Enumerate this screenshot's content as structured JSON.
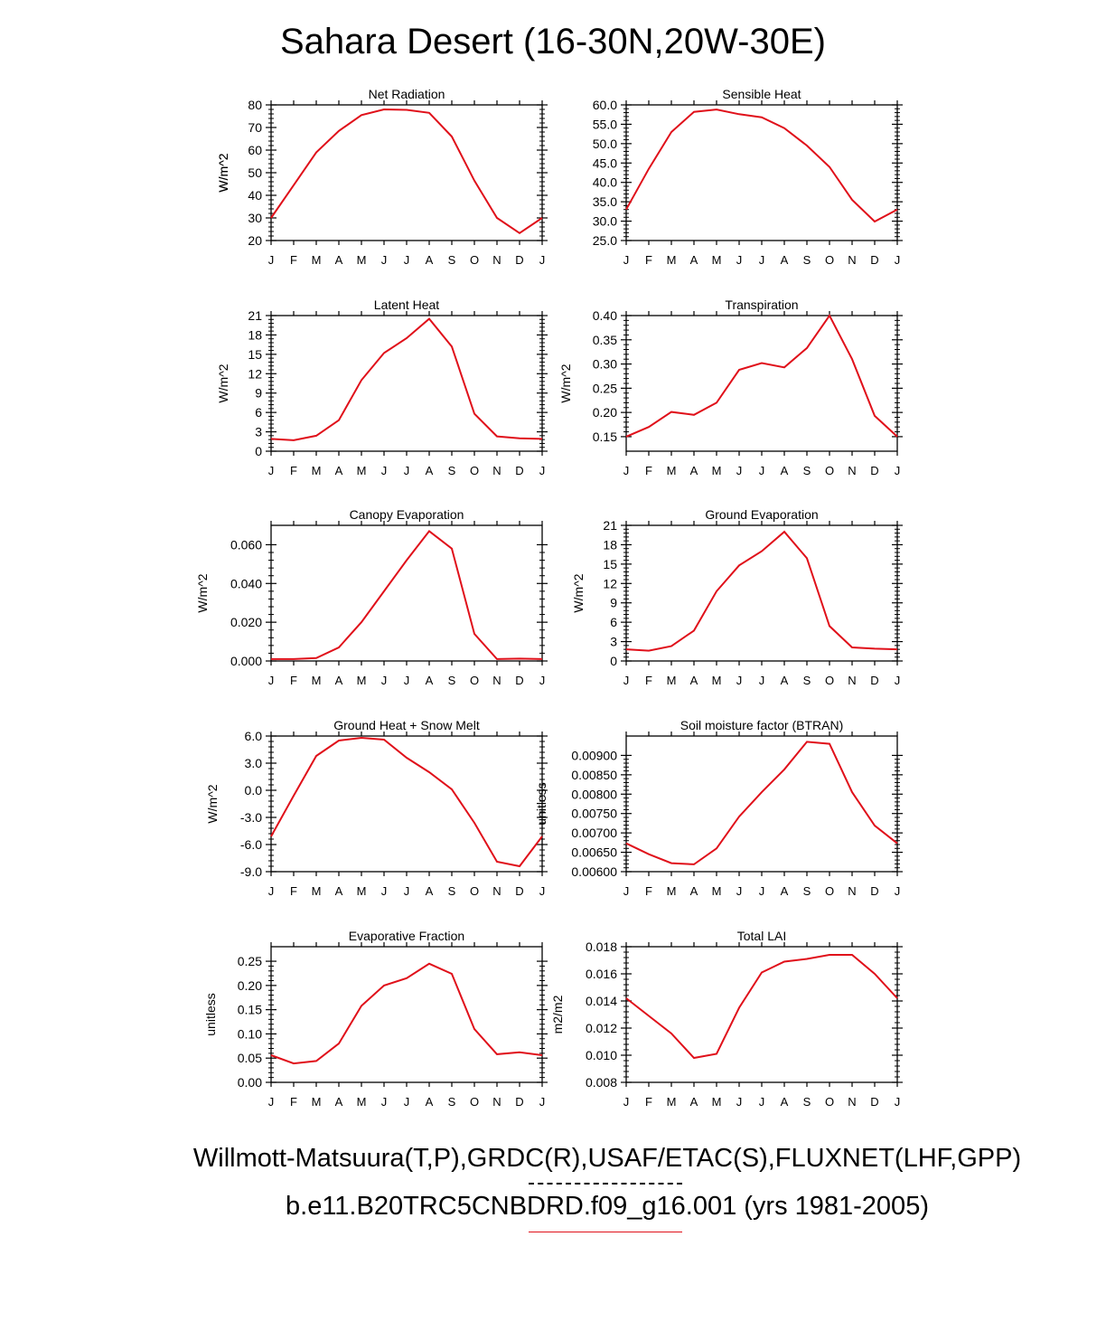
{
  "title": "Sahara Desert (16-30N,20W-30E)",
  "footer": {
    "line1": "Willmott-Matsuura(T,P),GRDC(R),USAF/ETAC(S),FLUXNET(LHF,GPP)",
    "line2": "b.e11.B20TRC5CNBDRD.f09_g16.001 (yrs 1981-2005)"
  },
  "colors": {
    "series": "#e0101a",
    "axes": "#000000"
  },
  "chart_data": [
    {
      "type": "line",
      "title": "Net Radiation",
      "ylabel": "W/m^2",
      "categories": [
        "J",
        "F",
        "M",
        "A",
        "M",
        "J",
        "J",
        "A",
        "S",
        "O",
        "N",
        "D",
        "J"
      ],
      "ylim": [
        20,
        80
      ],
      "yticks": [
        20,
        30,
        40,
        50,
        60,
        70,
        80
      ],
      "ytick_labels": [
        "20",
        "30",
        "40",
        "50",
        "60",
        "70",
        "80"
      ],
      "values": [
        30,
        44.5,
        59,
        68.5,
        75.5,
        78,
        77.8,
        76.5,
        66,
        46.5,
        30,
        23.3,
        30
      ]
    },
    {
      "type": "line",
      "title": "Sensible Heat",
      "ylabel": "W/m^2",
      "categories": [
        "J",
        "F",
        "M",
        "A",
        "M",
        "J",
        "J",
        "A",
        "S",
        "O",
        "N",
        "D",
        "J"
      ],
      "ylim": [
        25,
        60
      ],
      "yticks": [
        25,
        30,
        35,
        40,
        45,
        50,
        55,
        60
      ],
      "ytick_labels": [
        "25.0",
        "30.0",
        "35.0",
        "40.0",
        "45.0",
        "50.0",
        "55.0",
        "60.0"
      ],
      "values": [
        33,
        43.5,
        53,
        58.2,
        58.8,
        57.6,
        56.8,
        54,
        49.5,
        44,
        35.5,
        29.9,
        33
      ]
    },
    {
      "type": "line",
      "title": "Latent Heat",
      "ylabel": "W/m^2",
      "categories": [
        "J",
        "F",
        "M",
        "A",
        "M",
        "J",
        "J",
        "A",
        "S",
        "O",
        "N",
        "D",
        "J"
      ],
      "ylim": [
        0,
        21
      ],
      "yticks": [
        0,
        3,
        6,
        9,
        12,
        15,
        18,
        21
      ],
      "ytick_labels": [
        "0",
        "3",
        "6",
        "9",
        "12",
        "15",
        "18",
        "21"
      ],
      "values": [
        1.9,
        1.7,
        2.4,
        4.8,
        11,
        15.2,
        17.5,
        20.5,
        16.2,
        5.8,
        2.3,
        2,
        1.9
      ]
    },
    {
      "type": "line",
      "title": "Transpiration",
      "ylabel": "W/m^2",
      "categories": [
        "J",
        "F",
        "M",
        "A",
        "M",
        "J",
        "J",
        "A",
        "S",
        "O",
        "N",
        "D",
        "J"
      ],
      "ylim": [
        0.12,
        0.4
      ],
      "yticks": [
        0.15,
        0.2,
        0.25,
        0.3,
        0.35,
        0.4
      ],
      "ytick_labels": [
        "0.15",
        "0.20",
        "0.25",
        "0.30",
        "0.35",
        "0.40"
      ],
      "values": [
        0.15,
        0.17,
        0.201,
        0.195,
        0.22,
        0.288,
        0.302,
        0.293,
        0.333,
        0.4,
        0.31,
        0.193,
        0.15
      ]
    },
    {
      "type": "line",
      "title": "Canopy Evaporation",
      "ylabel": "W/m^2",
      "categories": [
        "J",
        "F",
        "M",
        "A",
        "M",
        "J",
        "J",
        "A",
        "S",
        "O",
        "N",
        "D",
        "J"
      ],
      "ylim": [
        0,
        0.07
      ],
      "yticks": [
        0,
        0.02,
        0.04,
        0.06
      ],
      "ytick_labels": [
        "0.000",
        "0.020",
        "0.040",
        "0.060"
      ],
      "values": [
        0.001,
        0.001,
        0.0015,
        0.007,
        0.02,
        0.036,
        0.052,
        0.067,
        0.058,
        0.014,
        0.001,
        0.0012,
        0.001
      ]
    },
    {
      "type": "line",
      "title": "Ground Evaporation",
      "ylabel": "W/m^2",
      "categories": [
        "J",
        "F",
        "M",
        "A",
        "M",
        "J",
        "J",
        "A",
        "S",
        "O",
        "N",
        "D",
        "J"
      ],
      "ylim": [
        0,
        21
      ],
      "yticks": [
        0,
        3,
        6,
        9,
        12,
        15,
        18,
        21
      ],
      "ytick_labels": [
        "0",
        "3",
        "6",
        "9",
        "12",
        "15",
        "18",
        "21"
      ],
      "values": [
        1.8,
        1.6,
        2.3,
        4.7,
        10.8,
        14.8,
        17,
        20,
        15.9,
        5.4,
        2.1,
        1.9,
        1.8
      ]
    },
    {
      "type": "line",
      "title": "Ground Heat + Snow Melt",
      "ylabel": "W/m^2",
      "categories": [
        "J",
        "F",
        "M",
        "A",
        "M",
        "J",
        "J",
        "A",
        "S",
        "O",
        "N",
        "D",
        "J"
      ],
      "ylim": [
        -9,
        6
      ],
      "yticks": [
        -9,
        -6,
        -3,
        0,
        3,
        6
      ],
      "ytick_labels": [
        "-9.0",
        "-6.0",
        "-3.0",
        "0.0",
        "3.0",
        "6.0"
      ],
      "values": [
        -5.1,
        -0.6,
        3.8,
        5.5,
        5.8,
        5.6,
        3.6,
        2,
        0.1,
        -3.6,
        -7.9,
        -8.4,
        -5.1
      ]
    },
    {
      "type": "line",
      "title": "Soil moisture factor (BTRAN)",
      "ylabel": "unitless",
      "categories": [
        "J",
        "F",
        "M",
        "A",
        "M",
        "J",
        "J",
        "A",
        "S",
        "O",
        "N",
        "D",
        "J"
      ],
      "ylim": [
        0.006,
        0.0095
      ],
      "yticks": [
        0.006,
        0.0065,
        0.007,
        0.0075,
        0.008,
        0.0085,
        0.009
      ],
      "ytick_labels": [
        "0.00600",
        "0.00650",
        "0.00700",
        "0.00750",
        "0.00800",
        "0.00850",
        "0.00900"
      ],
      "values": [
        0.00673,
        0.00645,
        0.00622,
        0.00619,
        0.0066,
        0.00742,
        0.00805,
        0.00864,
        0.00935,
        0.0093,
        0.00805,
        0.00719,
        0.00673
      ]
    },
    {
      "type": "line",
      "title": "Evaporative Fraction",
      "ylabel": "unitless",
      "categories": [
        "J",
        "F",
        "M",
        "A",
        "M",
        "J",
        "J",
        "A",
        "S",
        "O",
        "N",
        "D",
        "J"
      ],
      "ylim": [
        0,
        0.28
      ],
      "yticks": [
        0,
        0.05,
        0.1,
        0.15,
        0.2,
        0.25
      ],
      "ytick_labels": [
        "0.00",
        "0.05",
        "0.10",
        "0.15",
        "0.20",
        "0.25"
      ],
      "values": [
        0.056,
        0.039,
        0.044,
        0.08,
        0.158,
        0.2,
        0.215,
        0.245,
        0.224,
        0.11,
        0.058,
        0.062,
        0.056
      ]
    },
    {
      "type": "line",
      "title": "Total LAI",
      "ylabel": "m2/m2",
      "categories": [
        "J",
        "F",
        "M",
        "A",
        "M",
        "J",
        "J",
        "A",
        "S",
        "O",
        "N",
        "D",
        "J"
      ],
      "ylim": [
        0.008,
        0.018
      ],
      "yticks": [
        0.008,
        0.01,
        0.012,
        0.014,
        0.016,
        0.018
      ],
      "ytick_labels": [
        "0.008",
        "0.010",
        "0.012",
        "0.014",
        "0.016",
        "0.018"
      ],
      "values": [
        0.0142,
        0.0129,
        0.0116,
        0.0098,
        0.0101,
        0.0135,
        0.0161,
        0.0169,
        0.0171,
        0.0174,
        0.0174,
        0.016,
        0.0142
      ]
    }
  ]
}
